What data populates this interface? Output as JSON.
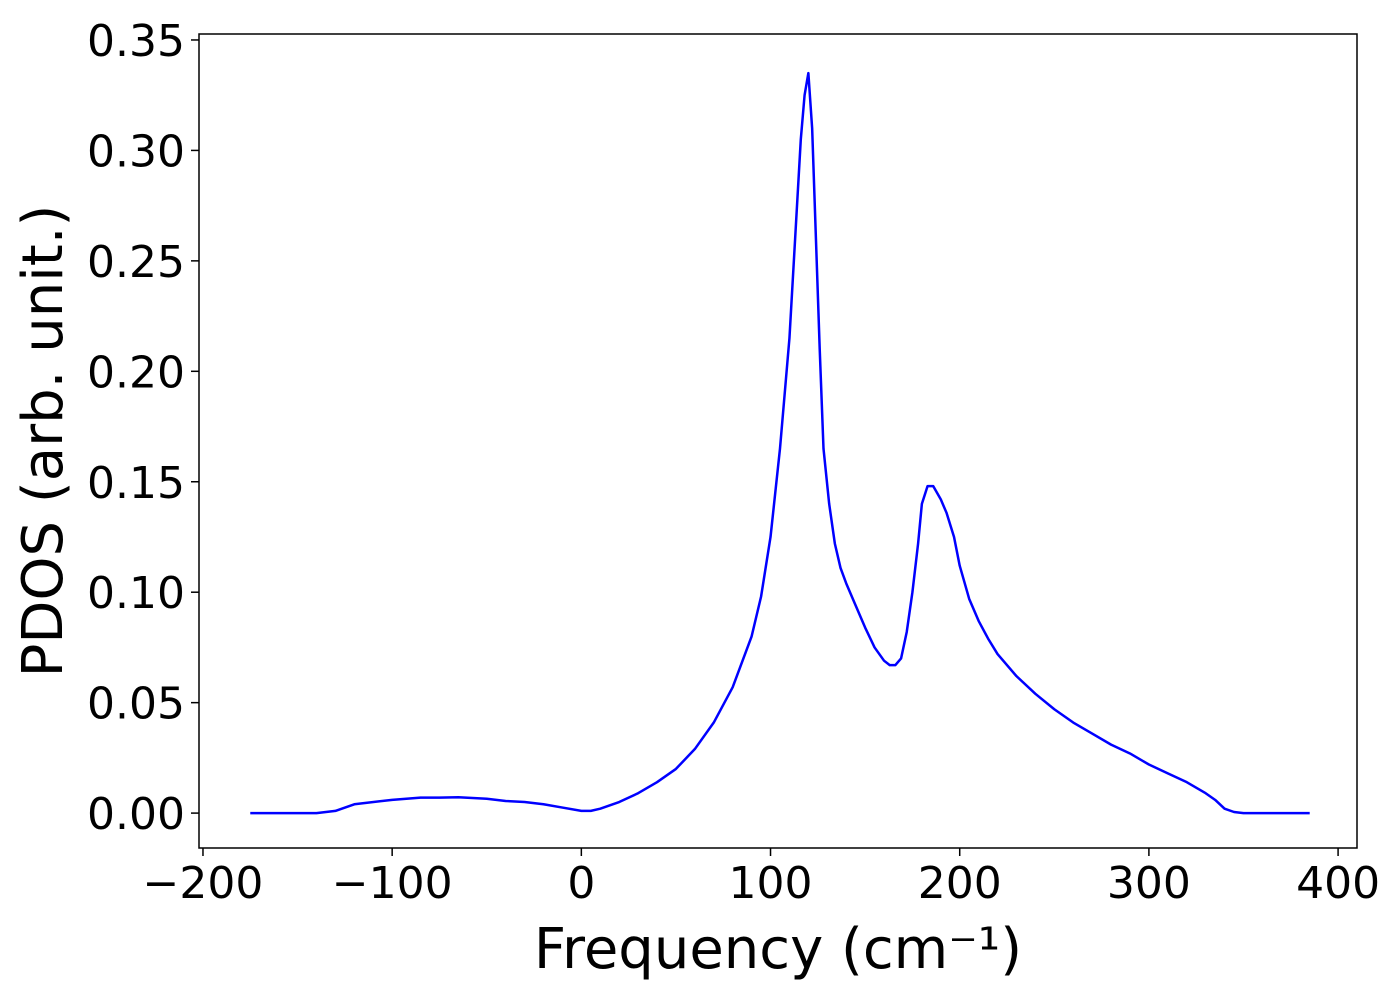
{
  "chart_data": {
    "type": "line",
    "x_label": "Frequency (cm⁻¹)",
    "y_label": "PDOS (arb. unit.)",
    "x": [
      -175,
      -140,
      -130,
      -120,
      -100,
      -85,
      -75,
      -65,
      -50,
      -40,
      -30,
      -20,
      -10,
      0,
      5,
      10,
      20,
      30,
      40,
      50,
      60,
      70,
      80,
      90,
      95,
      100,
      105,
      110,
      113,
      116,
      118,
      120,
      122,
      124,
      126,
      128,
      131,
      134,
      137,
      140,
      145,
      150,
      155,
      160,
      163,
      166,
      169,
      172,
      175,
      178,
      180,
      183,
      186,
      190,
      193,
      197,
      200,
      205,
      210,
      215,
      220,
      230,
      240,
      250,
      260,
      270,
      280,
      290,
      300,
      310,
      320,
      330,
      335,
      340,
      345,
      350,
      385
    ],
    "series": [
      {
        "color": "#0000ff",
        "values": [
          0,
          0,
          0.001,
          0.004,
          0.006,
          0.007,
          0.007,
          0.0072,
          0.0065,
          0.0055,
          0.005,
          0.004,
          0.0025,
          0.001,
          0.001,
          0.002,
          0.005,
          0.009,
          0.014,
          0.02,
          0.029,
          0.041,
          0.057,
          0.08,
          0.098,
          0.125,
          0.165,
          0.215,
          0.26,
          0.305,
          0.325,
          0.335,
          0.31,
          0.26,
          0.21,
          0.165,
          0.14,
          0.122,
          0.111,
          0.104,
          0.094,
          0.084,
          0.075,
          0.069,
          0.067,
          0.067,
          0.07,
          0.082,
          0.1,
          0.122,
          0.14,
          0.148,
          0.148,
          0.142,
          0.136,
          0.125,
          0.112,
          0.097,
          0.087,
          0.079,
          0.072,
          0.062,
          0.054,
          0.047,
          0.041,
          0.036,
          0.031,
          0.027,
          0.022,
          0.018,
          0.014,
          0.009,
          0.006,
          0.002,
          0.0005,
          0,
          0
        ]
      }
    ],
    "xlim": [
      -202.1,
      410
    ],
    "ylim": [
      -0.0158,
      0.3527
    ],
    "xticks": [
      {
        "value": -200,
        "label": "−200"
      },
      {
        "value": -100,
        "label": "−100"
      },
      0,
      100,
      200,
      300,
      400
    ],
    "yticks": [
      {
        "value": 0,
        "label": "0.00"
      },
      0.05,
      {
        "value": 0.1,
        "label": "0.10"
      },
      0.15,
      {
        "value": 0.2,
        "label": "0.20"
      },
      0.25,
      {
        "value": 0.3,
        "label": "0.30"
      },
      0.35
    ],
    "grid": false
  }
}
